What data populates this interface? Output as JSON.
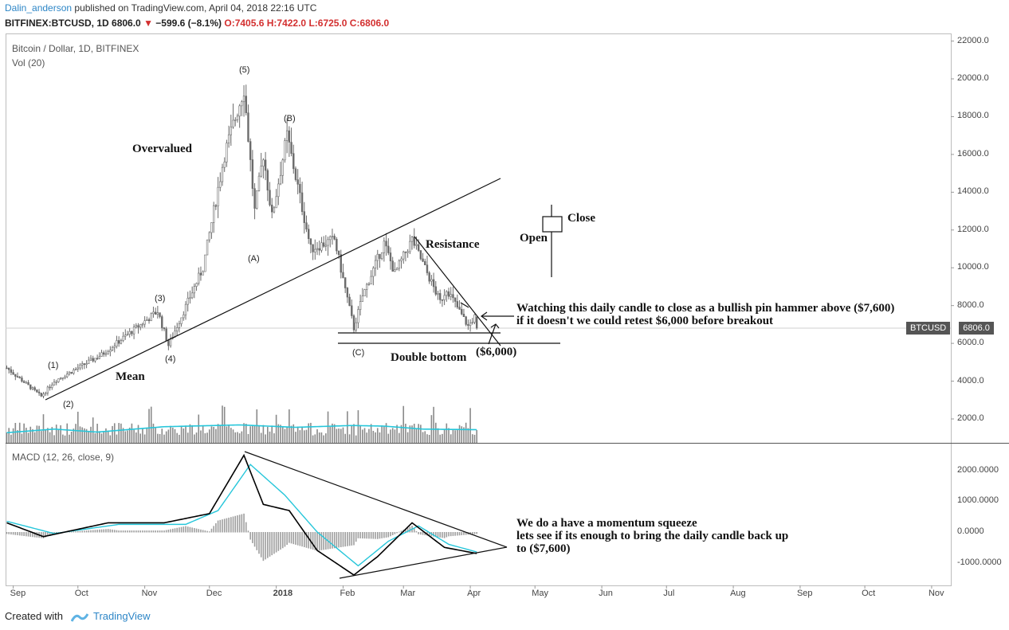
{
  "header": {
    "author": "Dalin_anderson",
    "published": "published on TradingView.com, April 04, 2018 22:16 UTC",
    "symbol": "BITFINEX:BTCUSD, 1D",
    "last": "6806.0",
    "change": "−599.6 (−8.1%)",
    "ohlc": "O:7405.6 H:7422.0 L:6725.0 C:6806.0"
  },
  "panes": {
    "main_title": "Bitcoin / Dollar, 1D, BITFINEX",
    "vol_title": "Vol (20)",
    "macd_title": "MACD (12, 26, close, 9)",
    "price_badge_label": "BTCUSD",
    "price_badge_value": "6806.0"
  },
  "annotations": {
    "overvalued": "Overvalued",
    "mean": "Mean",
    "resistance": "Resistance",
    "double_bottom": "Double bottom",
    "support": "($6,000)",
    "open": "Open",
    "close": "Close",
    "watch_line1": "Watching this daily candle to close as a bullish pin hammer above ($7,600)",
    "watch_line2": "if it doesn't we could retest $6,000 before breakout",
    "macd_line1": "We do a have a momentum squeeze",
    "macd_line2": "lets see if its enough to bring the daily candle back up",
    "macd_line3": "to ($7,600)"
  },
  "waves": {
    "w1": "(1)",
    "w2": "(2)",
    "w3": "(3)",
    "w4": "(4)",
    "w5": "(5)",
    "wA": "(A)",
    "wB": "(B)",
    "wC": "(C)"
  },
  "price_axis": [
    "22000.0",
    "20000.0",
    "18000.0",
    "16000.0",
    "14000.0",
    "12000.0",
    "10000.0",
    "8000.0",
    "6000.0",
    "4000.0",
    "2000.0"
  ],
  "macd_axis": [
    "2000.0000",
    "1000.0000",
    "0.0000",
    "-1000.0000"
  ],
  "time_axis": [
    "Sep",
    "Oct",
    "Nov",
    "Dec",
    "2018",
    "Feb",
    "Mar",
    "Apr",
    "May",
    "Jun",
    "Jul",
    "Aug",
    "Sep",
    "Oct",
    "Nov"
  ],
  "footer": {
    "created_with": "Created with",
    "brand": "TradingView"
  },
  "colors": {
    "candle": "#6b6b6b",
    "volume": "#8a8a8a",
    "vol_ma": "#26c6da",
    "macd": "#000000",
    "signal": "#26c6da"
  },
  "chart_data": [
    {
      "type": "candlestick",
      "title": "Bitcoin / Dollar, 1D, BITFINEX",
      "x_axis": "date",
      "y_range": [
        0,
        22500
      ],
      "x_range": [
        "2017-08-29",
        "2018-11-05"
      ],
      "key_points": [
        {
          "date": "2017-08-29",
          "price": 4700
        },
        {
          "date": "2017-09-14",
          "price": 3200
        },
        {
          "date": "2017-09-20",
          "price": 4000
        },
        {
          "date": "2017-10-12",
          "price": 5400
        },
        {
          "date": "2017-11-07",
          "price": 7700
        },
        {
          "date": "2017-11-12",
          "price": 5900
        },
        {
          "date": "2017-11-28",
          "price": 10000
        },
        {
          "date": "2017-12-08",
          "price": 16000
        },
        {
          "date": "2017-12-17",
          "price": 19500
        },
        {
          "date": "2017-12-22",
          "price": 13000
        },
        {
          "date": "2017-12-26",
          "price": 16000
        },
        {
          "date": "2017-12-30",
          "price": 12700
        },
        {
          "date": "2018-01-06",
          "price": 17000
        },
        {
          "date": "2018-01-17",
          "price": 11000
        },
        {
          "date": "2018-01-28",
          "price": 11500
        },
        {
          "date": "2018-02-06",
          "price": 6800
        },
        {
          "date": "2018-02-10",
          "price": 8500
        },
        {
          "date": "2018-02-20",
          "price": 11300
        },
        {
          "date": "2018-02-25",
          "price": 9700
        },
        {
          "date": "2018-03-05",
          "price": 11500
        },
        {
          "date": "2018-03-18",
          "price": 8200
        },
        {
          "date": "2018-03-21",
          "price": 8900
        },
        {
          "date": "2018-03-31",
          "price": 6900
        },
        {
          "date": "2018-04-03",
          "price": 7400
        },
        {
          "date": "2018-04-04",
          "price": 6806
        }
      ],
      "last_candle": {
        "open": 7405.6,
        "high": 7422.0,
        "low": 6725.0,
        "close": 6806.0
      },
      "volume_ma": [
        {
          "date": "2017-08-29",
          "value": 1700
        },
        {
          "date": "2017-09-20",
          "value": 2300
        },
        {
          "date": "2017-10-10",
          "value": 1800
        },
        {
          "date": "2017-11-10",
          "value": 2700
        },
        {
          "date": "2017-12-15",
          "value": 3000
        },
        {
          "date": "2018-01-10",
          "value": 2600
        },
        {
          "date": "2018-02-05",
          "value": 2900
        },
        {
          "date": "2018-02-20",
          "value": 2800
        },
        {
          "date": "2018-03-10",
          "value": 2300
        },
        {
          "date": "2018-04-04",
          "value": 2200
        }
      ]
    },
    {
      "type": "line",
      "title": "MACD (12, 26, close, 9)",
      "x_axis": "date",
      "y_range": [
        -1500,
        2600
      ],
      "series": [
        {
          "points": [
            {
              "date": "2017-08-29",
              "value": 300
            },
            {
              "date": "2017-09-15",
              "value": -150
            },
            {
              "date": "2017-10-15",
              "value": 300
            },
            {
              "date": "2017-11-10",
              "value": 300
            },
            {
              "date": "2017-12-01",
              "value": 600
            },
            {
              "date": "2017-12-17",
              "value": 2500
            },
            {
              "date": "2017-12-26",
              "value": 900
            },
            {
              "date": "2018-01-07",
              "value": 700
            },
            {
              "date": "2018-01-20",
              "value": -600
            },
            {
              "date": "2018-02-06",
              "value": -1400
            },
            {
              "date": "2018-02-17",
              "value": -800
            },
            {
              "date": "2018-03-05",
              "value": 300
            },
            {
              "date": "2018-03-20",
              "value": -500
            },
            {
              "date": "2018-04-04",
              "value": -700
            }
          ]
        },
        {
          "points": [
            {
              "date": "2017-08-29",
              "value": 350
            },
            {
              "date": "2017-09-20",
              "value": -50
            },
            {
              "date": "2017-10-20",
              "value": 250
            },
            {
              "date": "2017-11-20",
              "value": 250
            },
            {
              "date": "2017-12-05",
              "value": 700
            },
            {
              "date": "2017-12-20",
              "value": 2200
            },
            {
              "date": "2018-01-05",
              "value": 1200
            },
            {
              "date": "2018-01-20",
              "value": 0
            },
            {
              "date": "2018-02-08",
              "value": -1100
            },
            {
              "date": "2018-02-22",
              "value": -300
            },
            {
              "date": "2018-03-08",
              "value": 200
            },
            {
              "date": "2018-03-22",
              "value": -400
            },
            {
              "date": "2018-04-04",
              "value": -650
            }
          ]
        }
      ]
    }
  ]
}
